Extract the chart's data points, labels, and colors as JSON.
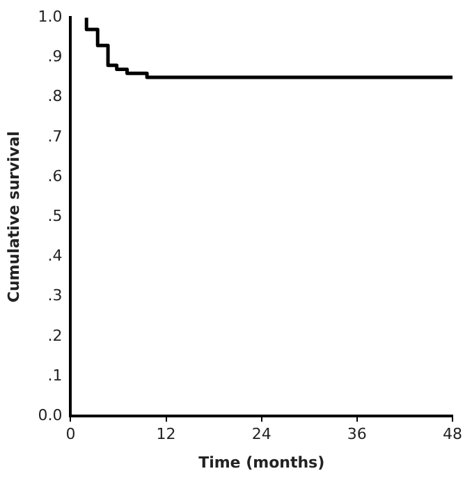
{
  "chart_data": {
    "type": "step",
    "xlabel": "Time (months)",
    "ylabel": "Cumulative survival",
    "x": [
      2,
      3.4,
      4.7,
      5.8,
      7.1,
      9.6,
      10.7,
      48
    ],
    "series": [
      {
        "color": "#000000",
        "values": [
          1.0,
          0.97,
          0.93,
          0.88,
          0.87,
          0.86,
          0.85,
          0.85
        ]
      }
    ],
    "xlim": [
      0,
      48
    ],
    "xticks": [
      0,
      12,
      24,
      36,
      48
    ],
    "ylim": [
      0,
      1
    ],
    "yticks": [
      {
        "value": 0,
        "label": "0.0"
      },
      {
        "value": 0.1,
        "label": ".1"
      },
      {
        "value": 0.2,
        "label": ".2"
      },
      {
        "value": 0.3,
        "label": ".3"
      },
      {
        "value": 0.4,
        "label": ".4"
      },
      {
        "value": 0.5,
        "label": ".5"
      },
      {
        "value": 0.6,
        "label": ".6"
      },
      {
        "value": 0.7,
        "label": ".7"
      },
      {
        "value": 0.8,
        "label": ".8"
      },
      {
        "value": 0.9,
        "label": ".9"
      },
      {
        "value": 1,
        "label": "1.0"
      }
    ],
    "grid": false,
    "legend": false,
    "marker": "none",
    "line_style": "solid"
  }
}
